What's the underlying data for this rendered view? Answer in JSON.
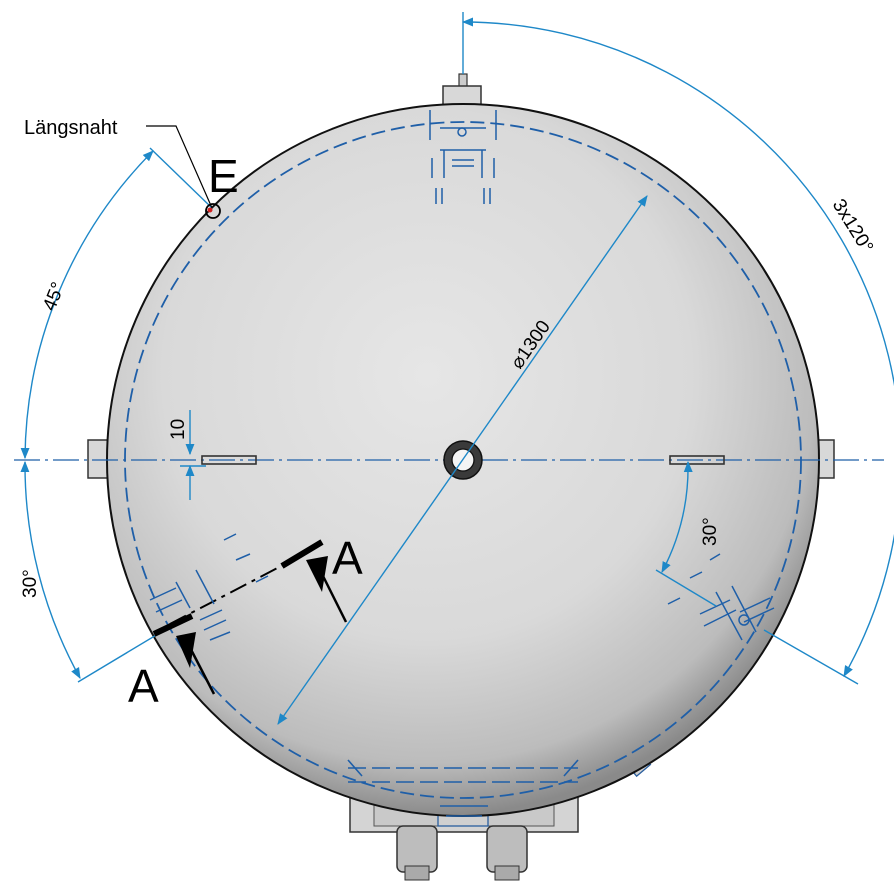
{
  "labels": {
    "weld_seam": "Längsnaht",
    "detail": "E",
    "section_left": "A",
    "section_right": "A"
  },
  "dimensions": {
    "diameter": "⌀1300",
    "angle_upper_left": "45°",
    "angle_lower_left": "30°",
    "angle_right": "30°",
    "angle_pattern": "3x120°",
    "offset": "10"
  },
  "colors": {
    "dimension": "#1e88c8",
    "hidden_lines": "#1f5fa8",
    "outline": "#111111"
  }
}
